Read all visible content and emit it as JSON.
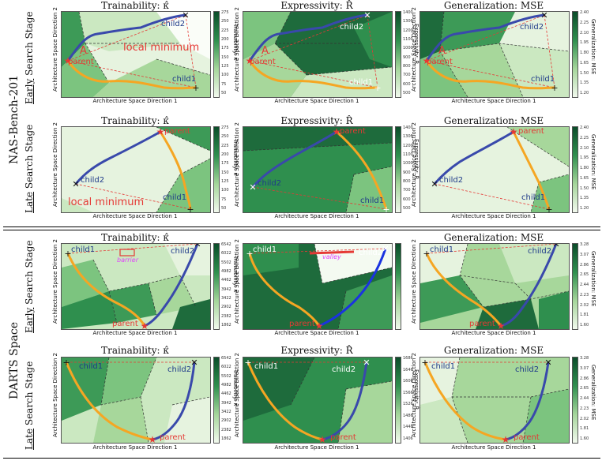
{
  "sections": [
    {
      "label": "NAS-Bench-201",
      "rows": [
        {
          "label_a": "Early",
          "label_b": " Search Stage"
        },
        {
          "label_a": "Late",
          "label_b": " Search Stage"
        }
      ]
    },
    {
      "label": "DARTS Space",
      "rows": [
        {
          "label_a": "Early",
          "label_b": " Search Stage"
        },
        {
          "label_a": "Late",
          "label_b": " Search Stage"
        }
      ]
    }
  ],
  "axes": {
    "x": "Architecture Space Direction 1",
    "y": "Architecture Space Direction 2"
  },
  "titles": {
    "trainability": "Trainability: κ̂",
    "expressivity": "Expressivity: R̂",
    "generalization": "Generalization: MSE"
  },
  "colorbars": {
    "trainability_label": "Trainability: κ̂",
    "expressivity_label": "Expressivity: R̂",
    "generalization_label": "Generalization: MSE",
    "nas_trainability_ticks": [
      "275",
      "250",
      "225",
      "200",
      "175",
      "150",
      "125",
      "100",
      "75",
      "50"
    ],
    "nas_expressivity_ticks": [
      "1400",
      "1300",
      "1200",
      "1100",
      "1000",
      "900",
      "800",
      "700",
      "600",
      "500"
    ],
    "nas_generalization_ticks": [
      "2.40",
      "2.25",
      "2.10",
      "1.95",
      "1.80",
      "1.65",
      "1.50",
      "1.35",
      "1.20"
    ],
    "darts_trainability_ticks": [
      "6542",
      "6022",
      "5502",
      "4982",
      "4462",
      "3942",
      "3422",
      "2902",
      "2382",
      "1862"
    ],
    "darts_expressivity_ticks": [
      "1686",
      "1646",
      "1606",
      "1566",
      "1526",
      "1486",
      "1446",
      "1406"
    ],
    "darts_generalization_ticks": [
      "3.28",
      "3.07",
      "2.86",
      "2.65",
      "2.44",
      "2.23",
      "2.02",
      "1.81",
      "1.60"
    ]
  },
  "markers": {
    "parent": "parent",
    "child1": "child1",
    "child2": "child2",
    "region_a": "A",
    "local_minimum": "local minimum",
    "barrier": "barrier",
    "valley": "valley"
  }
}
